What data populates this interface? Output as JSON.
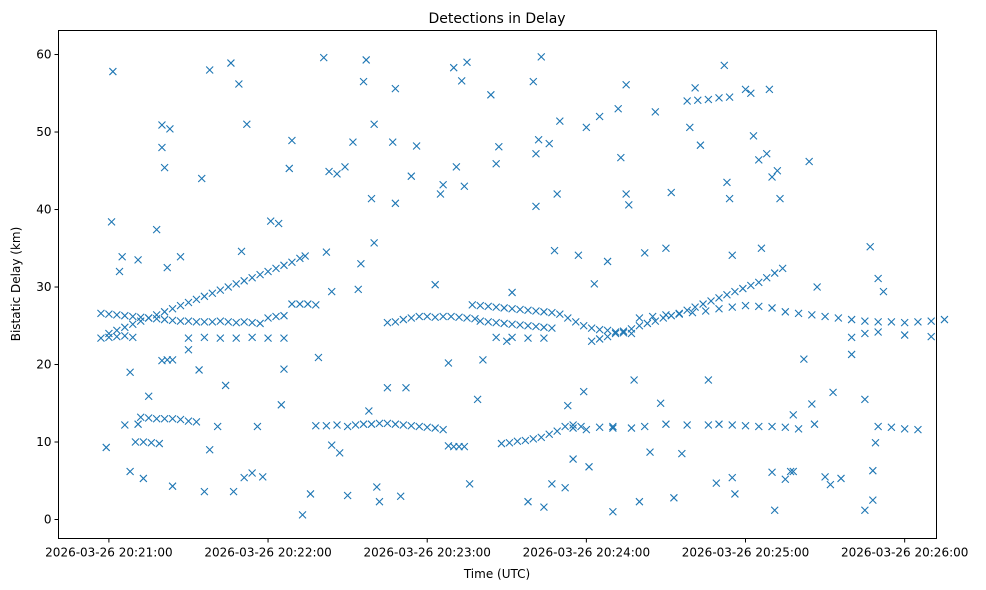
{
  "chart_data": {
    "type": "scatter",
    "title": "Detections in Delay",
    "xlabel": "Time (UTC)",
    "ylabel": "Bistatic Delay (km)",
    "x_unit": "seconds after 2026-03-26 20:20:00",
    "xlim": [
      41,
      372
    ],
    "ylim": [
      -2.45,
      63.1
    ],
    "marker": "x",
    "color": "#1f77b4",
    "grid": false,
    "xticks": [
      {
        "value": 60,
        "label": "2026-03-26 20:21:00"
      },
      {
        "value": 120,
        "label": "2026-03-26 20:22:00"
      },
      {
        "value": 180,
        "label": "2026-03-26 20:23:00"
      },
      {
        "value": 240,
        "label": "2026-03-26 20:24:00"
      },
      {
        "value": 300,
        "label": "2026-03-26 20:25:00"
      },
      {
        "value": 360,
        "label": "2026-03-26 20:26:00"
      }
    ],
    "yticks": [
      {
        "value": 0,
        "label": "0"
      },
      {
        "value": 10,
        "label": "10"
      },
      {
        "value": 20,
        "label": "20"
      },
      {
        "value": 30,
        "label": "30"
      },
      {
        "value": 40,
        "label": "40"
      },
      {
        "value": 50,
        "label": "50"
      },
      {
        "value": 60,
        "label": "60"
      }
    ],
    "points": [
      [
        60,
        24
      ],
      [
        63,
        24.4
      ],
      [
        66,
        24.8
      ],
      [
        69,
        25.2
      ],
      [
        72,
        25.6
      ],
      [
        75,
        26
      ],
      [
        78,
        26.4
      ],
      [
        81,
        26.8
      ],
      [
        84,
        27.2
      ],
      [
        87,
        27.6
      ],
      [
        90,
        28
      ],
      [
        93,
        28.4
      ],
      [
        96,
        28.8
      ],
      [
        99,
        29.2
      ],
      [
        102,
        29.6
      ],
      [
        105,
        30
      ],
      [
        108,
        30.4
      ],
      [
        111,
        30.8
      ],
      [
        114,
        31.2
      ],
      [
        117,
        31.6
      ],
      [
        120,
        32
      ],
      [
        123,
        32.4
      ],
      [
        126,
        32.8
      ],
      [
        129,
        33.2
      ],
      [
        132,
        33.7
      ],
      [
        134,
        34
      ],
      [
        57,
        26.6
      ],
      [
        60,
        26.5
      ],
      [
        63,
        26.4
      ],
      [
        66,
        26.3
      ],
      [
        69,
        26.2
      ],
      [
        72,
        26.1
      ],
      [
        75,
        26
      ],
      [
        78,
        25.9
      ],
      [
        81,
        25.8
      ],
      [
        84,
        25.7
      ],
      [
        87,
        25.6
      ],
      [
        90,
        25.6
      ],
      [
        93,
        25.5
      ],
      [
        96,
        25.5
      ],
      [
        99,
        25.5
      ],
      [
        102,
        25.6
      ],
      [
        105,
        25.5
      ],
      [
        108,
        25.4
      ],
      [
        111,
        25.5
      ],
      [
        114,
        25.4
      ],
      [
        117,
        25.3
      ],
      [
        120,
        26
      ],
      [
        123,
        26.2
      ],
      [
        126,
        26.3
      ],
      [
        129,
        27.8
      ],
      [
        132,
        27.8
      ],
      [
        135,
        27.8
      ],
      [
        138,
        27.7
      ],
      [
        57,
        23.4
      ],
      [
        60,
        23.5
      ],
      [
        63,
        23.6
      ],
      [
        66,
        23.7
      ],
      [
        69,
        23.5
      ],
      [
        90,
        23.4
      ],
      [
        96,
        23.5
      ],
      [
        102,
        23.4
      ],
      [
        108,
        23.4
      ],
      [
        114,
        23.5
      ],
      [
        120,
        23.4
      ],
      [
        126,
        23.4
      ],
      [
        80,
        20.5
      ],
      [
        82,
        20.6
      ],
      [
        84,
        20.6
      ],
      [
        72,
        13.2
      ],
      [
        75,
        13.1
      ],
      [
        78,
        13
      ],
      [
        81,
        13
      ],
      [
        84,
        13
      ],
      [
        87,
        12.9
      ],
      [
        90,
        12.7
      ],
      [
        93,
        12.6
      ],
      [
        70,
        10
      ],
      [
        73,
        10
      ],
      [
        76,
        9.9
      ],
      [
        79,
        9.8
      ],
      [
        138,
        12.1
      ],
      [
        142,
        12.1
      ],
      [
        146,
        12.2
      ],
      [
        150,
        12
      ],
      [
        153,
        12.2
      ],
      [
        156,
        12.3
      ],
      [
        159,
        12.3
      ],
      [
        162,
        12.4
      ],
      [
        165,
        12.4
      ],
      [
        168,
        12.3
      ],
      [
        171,
        12.2
      ],
      [
        174,
        12.1
      ],
      [
        177,
        12
      ],
      [
        180,
        11.9
      ],
      [
        183,
        11.8
      ],
      [
        186,
        11.6
      ],
      [
        188,
        9.5
      ],
      [
        190,
        9.4
      ],
      [
        192,
        9.4
      ],
      [
        194,
        9.4
      ],
      [
        165,
        25.4
      ],
      [
        168,
        25.5
      ],
      [
        171,
        25.8
      ],
      [
        174,
        26
      ],
      [
        177,
        26.2
      ],
      [
        180,
        26.2
      ],
      [
        183,
        26.1
      ],
      [
        186,
        26.2
      ],
      [
        189,
        26.2
      ],
      [
        192,
        26.1
      ],
      [
        195,
        26
      ],
      [
        198,
        25.9
      ],
      [
        197,
        27.7
      ],
      [
        200,
        27.6
      ],
      [
        203,
        27.5
      ],
      [
        206,
        27.4
      ],
      [
        209,
        27.3
      ],
      [
        212,
        27.2
      ],
      [
        215,
        27.1
      ],
      [
        218,
        27
      ],
      [
        221,
        26.9
      ],
      [
        224,
        26.8
      ],
      [
        227,
        26.7
      ],
      [
        230,
        26.5
      ],
      [
        233,
        26
      ],
      [
        236,
        25.5
      ],
      [
        239,
        25
      ],
      [
        242,
        24.7
      ],
      [
        245,
        24.5
      ],
      [
        248,
        24.4
      ],
      [
        251,
        24.2
      ],
      [
        254,
        24.1
      ],
      [
        257,
        24
      ],
      [
        200,
        25.6
      ],
      [
        203,
        25.5
      ],
      [
        206,
        25.4
      ],
      [
        209,
        25.3
      ],
      [
        212,
        25.2
      ],
      [
        215,
        25.1
      ],
      [
        218,
        25
      ],
      [
        221,
        24.9
      ],
      [
        224,
        24.8
      ],
      [
        227,
        24.7
      ],
      [
        206,
        23.5
      ],
      [
        212,
        23.5
      ],
      [
        218,
        23.4
      ],
      [
        224,
        23.4
      ],
      [
        208,
        9.8
      ],
      [
        211,
        9.9
      ],
      [
        214,
        10.1
      ],
      [
        217,
        10.2
      ],
      [
        220,
        10.4
      ],
      [
        223,
        10.6
      ],
      [
        226,
        11
      ],
      [
        229,
        11.4
      ],
      [
        232,
        12
      ],
      [
        235,
        12.2
      ],
      [
        238,
        12
      ],
      [
        245,
        11.9
      ],
      [
        250,
        11.8
      ],
      [
        242,
        23
      ],
      [
        245,
        23.3
      ],
      [
        248,
        23.6
      ],
      [
        251,
        24
      ],
      [
        254,
        24.3
      ],
      [
        257,
        24.6
      ],
      [
        260,
        25
      ],
      [
        263,
        25.3
      ],
      [
        266,
        25.6
      ],
      [
        269,
        26
      ],
      [
        272,
        26.3
      ],
      [
        275,
        26.6
      ],
      [
        278,
        27
      ],
      [
        281,
        27.4
      ],
      [
        284,
        27.8
      ],
      [
        287,
        28.2
      ],
      [
        290,
        28.6
      ],
      [
        293,
        29
      ],
      [
        296,
        29.4
      ],
      [
        299,
        29.8
      ],
      [
        302,
        30.2
      ],
      [
        305,
        30.6
      ],
      [
        308,
        31.2
      ],
      [
        311,
        31.8
      ],
      [
        314,
        32.4
      ],
      [
        260,
        26
      ],
      [
        265,
        26.2
      ],
      [
        270,
        26.4
      ],
      [
        275,
        26.5
      ],
      [
        280,
        26.7
      ],
      [
        285,
        26.9
      ],
      [
        290,
        27.2
      ],
      [
        295,
        27.4
      ],
      [
        300,
        27.6
      ],
      [
        305,
        27.5
      ],
      [
        310,
        27.3
      ],
      [
        315,
        26.8
      ],
      [
        320,
        26.6
      ],
      [
        325,
        26.4
      ],
      [
        330,
        26.2
      ],
      [
        335,
        26
      ],
      [
        340,
        25.8
      ],
      [
        345,
        25.6
      ],
      [
        350,
        25.5
      ],
      [
        355,
        25.5
      ],
      [
        360,
        25.4
      ],
      [
        365,
        25.5
      ],
      [
        370,
        25.6
      ],
      [
        375,
        25.8
      ],
      [
        340,
        23.5
      ],
      [
        345,
        24
      ],
      [
        350,
        24.2
      ],
      [
        360,
        23.8
      ],
      [
        370,
        23.6
      ],
      [
        235,
        11.8
      ],
      [
        240,
        11.6
      ],
      [
        250,
        12
      ],
      [
        257,
        11.8
      ],
      [
        262,
        12
      ],
      [
        270,
        12.3
      ],
      [
        278,
        12.2
      ],
      [
        286,
        12.2
      ],
      [
        290,
        12.3
      ],
      [
        295,
        12.2
      ],
      [
        300,
        12.1
      ],
      [
        305,
        12
      ],
      [
        310,
        12
      ],
      [
        315,
        11.9
      ],
      [
        320,
        11.7
      ],
      [
        326,
        12.3
      ],
      [
        350,
        12
      ],
      [
        355,
        11.9
      ],
      [
        360,
        11.7
      ],
      [
        365,
        11.6
      ],
      [
        278,
        54
      ],
      [
        282,
        54.1
      ],
      [
        286,
        54.2
      ],
      [
        290,
        54.4
      ],
      [
        294,
        54.5
      ],
      [
        59,
        9.3
      ],
      [
        61,
        38.4
      ],
      [
        61.5,
        57.8
      ],
      [
        64,
        32
      ],
      [
        65,
        33.9
      ],
      [
        66,
        12.2
      ],
      [
        68,
        6.2
      ],
      [
        68,
        19
      ],
      [
        71,
        33.5
      ],
      [
        71,
        12.3
      ],
      [
        73,
        5.3
      ],
      [
        75,
        15.9
      ],
      [
        78,
        37.4
      ],
      [
        80,
        50.9
      ],
      [
        80,
        48
      ],
      [
        81,
        45.4
      ],
      [
        82,
        32.5
      ],
      [
        83,
        50.4
      ],
      [
        84,
        4.3
      ],
      [
        87,
        33.9
      ],
      [
        90,
        21.9
      ],
      [
        94,
        19.3
      ],
      [
        95,
        44
      ],
      [
        96,
        3.6
      ],
      [
        98,
        58
      ],
      [
        98,
        9
      ],
      [
        101,
        12
      ],
      [
        104,
        17.3
      ],
      [
        106,
        58.9
      ],
      [
        107,
        3.6
      ],
      [
        109,
        56.2
      ],
      [
        110,
        34.6
      ],
      [
        112,
        51
      ],
      [
        111,
        5.4
      ],
      [
        114,
        6
      ],
      [
        116,
        12
      ],
      [
        118,
        5.5
      ],
      [
        121,
        38.5
      ],
      [
        124,
        38.2
      ],
      [
        125,
        14.8
      ],
      [
        126,
        19.4
      ],
      [
        128,
        45.3
      ],
      [
        129,
        48.9
      ],
      [
        133,
        0.6
      ],
      [
        136,
        3.3
      ],
      [
        139,
        20.9
      ],
      [
        141,
        59.6
      ],
      [
        142,
        34.5
      ],
      [
        143,
        44.9
      ],
      [
        144,
        29.4
      ],
      [
        144,
        9.6
      ],
      [
        146,
        44.6
      ],
      [
        147,
        8.6
      ],
      [
        149,
        45.5
      ],
      [
        150,
        3.1
      ],
      [
        152,
        48.7
      ],
      [
        154,
        29.7
      ],
      [
        155,
        33
      ],
      [
        156,
        56.5
      ],
      [
        157,
        59.3
      ],
      [
        158,
        14
      ],
      [
        159,
        41.4
      ],
      [
        160,
        51
      ],
      [
        160,
        35.7
      ],
      [
        161,
        4.2
      ],
      [
        162,
        2.3
      ],
      [
        165,
        17
      ],
      [
        167,
        48.7
      ],
      [
        168,
        55.6
      ],
      [
        168,
        40.8
      ],
      [
        170,
        3
      ],
      [
        172,
        17
      ],
      [
        174,
        44.3
      ],
      [
        176,
        48.2
      ],
      [
        183,
        30.3
      ],
      [
        185,
        42
      ],
      [
        186,
        43.2
      ],
      [
        188,
        20.2
      ],
      [
        190,
        58.3
      ],
      [
        191,
        45.5
      ],
      [
        193,
        56.6
      ],
      [
        194,
        43
      ],
      [
        195,
        59
      ],
      [
        196,
        4.6
      ],
      [
        199,
        15.5
      ],
      [
        201,
        20.6
      ],
      [
        204,
        54.8
      ],
      [
        206,
        45.9
      ],
      [
        207,
        48.1
      ],
      [
        210,
        23
      ],
      [
        212,
        29.3
      ],
      [
        218,
        2.3
      ],
      [
        220,
        56.5
      ],
      [
        221,
        40.4
      ],
      [
        221,
        47.2
      ],
      [
        222,
        49
      ],
      [
        223,
        59.7
      ],
      [
        224,
        1.6
      ],
      [
        226,
        48.5
      ],
      [
        227,
        4.6
      ],
      [
        228,
        34.7
      ],
      [
        229,
        42
      ],
      [
        230,
        51.4
      ],
      [
        232,
        4.1
      ],
      [
        233,
        14.7
      ],
      [
        235,
        7.8
      ],
      [
        237,
        34.1
      ],
      [
        239,
        16.5
      ],
      [
        240,
        50.6
      ],
      [
        241,
        6.8
      ],
      [
        243,
        30.4
      ],
      [
        245,
        52
      ],
      [
        248,
        33.3
      ],
      [
        250,
        1
      ],
      [
        252,
        53
      ],
      [
        253,
        46.7
      ],
      [
        255,
        56.1
      ],
      [
        255,
        42
      ],
      [
        256,
        40.6
      ],
      [
        258,
        18
      ],
      [
        260,
        2.3
      ],
      [
        262,
        34.4
      ],
      [
        264,
        8.7
      ],
      [
        266,
        52.6
      ],
      [
        268,
        15
      ],
      [
        270,
        35
      ],
      [
        272,
        42.2
      ],
      [
        273,
        2.8
      ],
      [
        276,
        8.5
      ],
      [
        279,
        50.6
      ],
      [
        281,
        55.7
      ],
      [
        283,
        48.3
      ],
      [
        286,
        18
      ],
      [
        289,
        4.7
      ],
      [
        292,
        58.6
      ],
      [
        293,
        43.5
      ],
      [
        294,
        41.4
      ],
      [
        295,
        34.1
      ],
      [
        295,
        5.4
      ],
      [
        296,
        3.3
      ],
      [
        300,
        55.5
      ],
      [
        302,
        55
      ],
      [
        303,
        49.5
      ],
      [
        305,
        46.4
      ],
      [
        306,
        35
      ],
      [
        308,
        47.2
      ],
      [
        309,
        55.5
      ],
      [
        310,
        44.2
      ],
      [
        310,
        6.1
      ],
      [
        311,
        1.2
      ],
      [
        312,
        45
      ],
      [
        313,
        41.4
      ],
      [
        315,
        5.2
      ],
      [
        317,
        6.2
      ],
      [
        318,
        6.2
      ],
      [
        318,
        13.5
      ],
      [
        322,
        20.7
      ],
      [
        324,
        46.2
      ],
      [
        325,
        14.9
      ],
      [
        327,
        30
      ],
      [
        330,
        5.5
      ],
      [
        332,
        4.5
      ],
      [
        333,
        16.4
      ],
      [
        336,
        5.3
      ],
      [
        340,
        21.3
      ],
      [
        345,
        15.5
      ],
      [
        347,
        35.2
      ],
      [
        348,
        6.3
      ],
      [
        348,
        2.5
      ],
      [
        349,
        9.9
      ],
      [
        350,
        31.1
      ],
      [
        352,
        29.4
      ],
      [
        345,
        1.2
      ]
    ]
  }
}
